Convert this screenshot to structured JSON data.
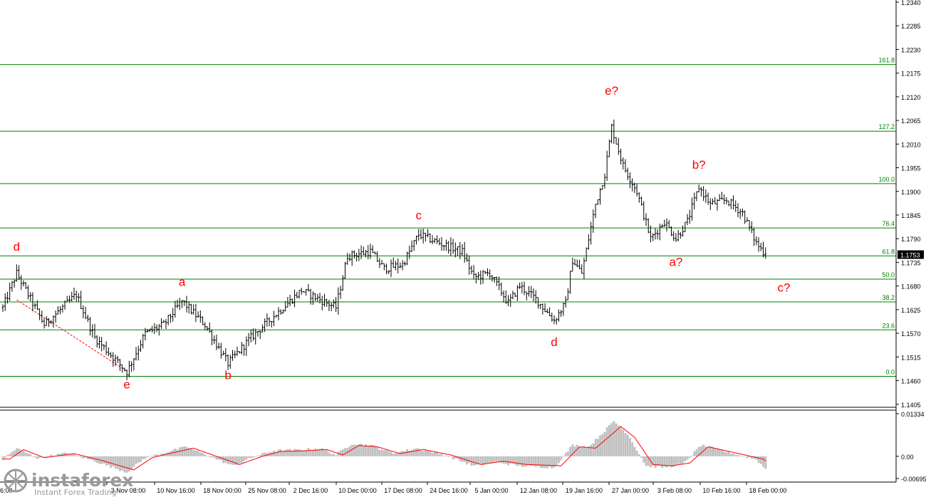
{
  "chart_data": [
    {
      "type": "ohlc",
      "instrument_price_label": "1.1753",
      "y_axis": {
        "ticks": [
          "1.2340",
          "1.2285",
          "1.2230",
          "1.2175",
          "1.2120",
          "1.2065",
          "1.2010",
          "1.1955",
          "1.1900",
          "1.1845",
          "1.1790",
          "1.1735",
          "1.1680",
          "1.1625",
          "1.1570",
          "1.1515",
          "1.1460",
          "1.1405"
        ],
        "range": [
          1.1398,
          1.2345
        ]
      },
      "x_axis": {
        "ticks": [
          "3 Nov 08:00",
          "10 Nov 16:00",
          "18 Nov 00:00",
          "25 Nov 08:00",
          "2 Dec 16:00",
          "10 Dec 00:00",
          "17 Dec 08:00",
          "24 Dec 16:00",
          "5 Jan 00:00",
          "12 Jan 08:00",
          "19 Jan 16:00",
          "27 Jan 00:00",
          "3 Feb 08:00",
          "10 Feb 16:00",
          "18 Feb 00:00"
        ],
        "first_tick_partial": "6:00"
      },
      "fib_levels": [
        {
          "label": "0.0",
          "value": 1.147
        },
        {
          "label": "23.6",
          "value": 1.1578
        },
        {
          "label": "38.2",
          "value": 1.1643
        },
        {
          "label": "50.0",
          "value": 1.1696
        },
        {
          "label": "61.8",
          "value": 1.175
        },
        {
          "label": "76.4",
          "value": 1.1815
        },
        {
          "label": "100.0",
          "value": 1.1918
        },
        {
          "label": "127.2",
          "value": 1.204
        },
        {
          "label": "161.8",
          "value": 1.2195
        }
      ],
      "wave_labels": [
        {
          "text": "d",
          "bar": 6,
          "price": 1.1762
        },
        {
          "text": "e",
          "bar": 54,
          "price": 1.1442
        },
        {
          "text": "a",
          "bar": 78,
          "price": 1.168
        },
        {
          "text": "b",
          "bar": 98,
          "price": 1.1463
        },
        {
          "text": "c",
          "bar": 181,
          "price": 1.1835
        },
        {
          "text": "d",
          "bar": 240,
          "price": 1.154
        },
        {
          "text": "e?",
          "bar": 265,
          "price": 1.2125
        },
        {
          "text": "a?",
          "bar": 293,
          "price": 1.1727
        },
        {
          "text": "b?",
          "bar": 303,
          "price": 1.1953
        },
        {
          "text": "c?",
          "bar": 340,
          "price": 1.1667
        }
      ],
      "price_path": [
        {
          "bar": 0,
          "price": 1.163
        },
        {
          "bar": 6,
          "price": 1.171
        },
        {
          "bar": 18,
          "price": 1.159
        },
        {
          "bar": 32,
          "price": 1.166
        },
        {
          "bar": 40,
          "price": 1.156
        },
        {
          "bar": 54,
          "price": 1.148
        },
        {
          "bar": 62,
          "price": 1.157
        },
        {
          "bar": 70,
          "price": 1.159
        },
        {
          "bar": 78,
          "price": 1.1645
        },
        {
          "bar": 88,
          "price": 1.159
        },
        {
          "bar": 98,
          "price": 1.15
        },
        {
          "bar": 108,
          "price": 1.156
        },
        {
          "bar": 120,
          "price": 1.162
        },
        {
          "bar": 130,
          "price": 1.167
        },
        {
          "bar": 145,
          "price": 1.163
        },
        {
          "bar": 150,
          "price": 1.175
        },
        {
          "bar": 160,
          "price": 1.176
        },
        {
          "bar": 166,
          "price": 1.172
        },
        {
          "bar": 174,
          "price": 1.173
        },
        {
          "bar": 181,
          "price": 1.18
        },
        {
          "bar": 190,
          "price": 1.178
        },
        {
          "bar": 200,
          "price": 1.176
        },
        {
          "bar": 205,
          "price": 1.17
        },
        {
          "bar": 212,
          "price": 1.171
        },
        {
          "bar": 220,
          "price": 1.164
        },
        {
          "bar": 225,
          "price": 1.168
        },
        {
          "bar": 232,
          "price": 1.165
        },
        {
          "bar": 240,
          "price": 1.16
        },
        {
          "bar": 245,
          "price": 1.164
        },
        {
          "bar": 248,
          "price": 1.174
        },
        {
          "bar": 252,
          "price": 1.171
        },
        {
          "bar": 258,
          "price": 1.187
        },
        {
          "bar": 262,
          "price": 1.194
        },
        {
          "bar": 265,
          "price": 1.205
        },
        {
          "bar": 270,
          "price": 1.196
        },
        {
          "bar": 276,
          "price": 1.19
        },
        {
          "bar": 282,
          "price": 1.179
        },
        {
          "bar": 288,
          "price": 1.183
        },
        {
          "bar": 293,
          "price": 1.179
        },
        {
          "bar": 298,
          "price": 1.183
        },
        {
          "bar": 303,
          "price": 1.191
        },
        {
          "bar": 308,
          "price": 1.187
        },
        {
          "bar": 315,
          "price": 1.188
        },
        {
          "bar": 322,
          "price": 1.185
        },
        {
          "bar": 328,
          "price": 1.178
        },
        {
          "bar": 331,
          "price": 1.176
        }
      ],
      "dashed_line": {
        "from_bar": 6,
        "from_price": 1.1648,
        "to_bar": 54,
        "to_price": 1.1482
      },
      "oscillator": {
        "ticks": [
          "0.01334",
          "0.00",
          "-0.00695"
        ],
        "range": [
          -0.00695,
          0.01334
        ],
        "path": [
          {
            "bar": 0,
            "value": -0.001
          },
          {
            "bar": 6,
            "value": 0.0025
          },
          {
            "bar": 15,
            "value": -0.0005
          },
          {
            "bar": 28,
            "value": 0.001
          },
          {
            "bar": 40,
            "value": -0.0015
          },
          {
            "bar": 54,
            "value": -0.005
          },
          {
            "bar": 62,
            "value": -0.0005
          },
          {
            "bar": 72,
            "value": 0.0015
          },
          {
            "bar": 80,
            "value": 0.003
          },
          {
            "bar": 90,
            "value": 0.0
          },
          {
            "bar": 100,
            "value": -0.003
          },
          {
            "bar": 110,
            "value": 0.0
          },
          {
            "bar": 118,
            "value": 0.0018
          },
          {
            "bar": 128,
            "value": 0.002
          },
          {
            "bar": 138,
            "value": 0.0025
          },
          {
            "bar": 145,
            "value": 0.0005
          },
          {
            "bar": 152,
            "value": 0.004
          },
          {
            "bar": 160,
            "value": 0.0035
          },
          {
            "bar": 170,
            "value": 0.001
          },
          {
            "bar": 180,
            "value": 0.0025
          },
          {
            "bar": 192,
            "value": 0.0005
          },
          {
            "bar": 205,
            "value": -0.003
          },
          {
            "bar": 215,
            "value": -0.0018
          },
          {
            "bar": 225,
            "value": -0.003
          },
          {
            "bar": 240,
            "value": -0.0035
          },
          {
            "bar": 248,
            "value": 0.0035
          },
          {
            "bar": 255,
            "value": 0.003
          },
          {
            "bar": 262,
            "value": 0.008
          },
          {
            "bar": 266,
            "value": 0.011
          },
          {
            "bar": 272,
            "value": 0.007
          },
          {
            "bar": 280,
            "value": -0.003
          },
          {
            "bar": 288,
            "value": -0.0035
          },
          {
            "bar": 296,
            "value": -0.0025
          },
          {
            "bar": 304,
            "value": 0.0035
          },
          {
            "bar": 312,
            "value": 0.002
          },
          {
            "bar": 320,
            "value": 0.0005
          },
          {
            "bar": 328,
            "value": -0.001
          },
          {
            "bar": 332,
            "value": -0.004
          }
        ]
      }
    }
  ],
  "colors": {
    "candle": "#000000",
    "fib_line": "#008000",
    "fib_label": "#008000",
    "wave_label": "#ff0000",
    "dashed_line": "#ff0000",
    "osc_hist": "#c0c0c0",
    "osc_signal": "#ff0000",
    "axis_text": "#000000",
    "price_box_bg": "#000000",
    "price_box_text": "#ffffff"
  },
  "logo": {
    "brand": "instaforex",
    "tagline": "Instant Forex Trading"
  }
}
